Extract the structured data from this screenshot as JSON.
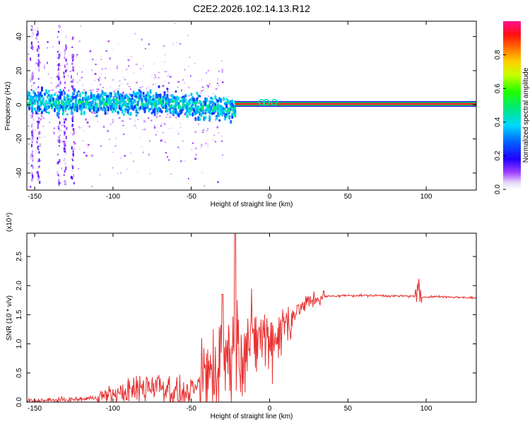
{
  "title": "C2E2.2026.102.14.13.R12",
  "chart_data": [
    {
      "type": "heatmap",
      "panel": "top",
      "xlabel": "Height of straight line (km)",
      "ylabel": "Frequency (Hz)",
      "xlim": [
        -155,
        132
      ],
      "ylim": [
        -50,
        49
      ],
      "xticks": [
        -150,
        -100,
        -50,
        0,
        50,
        100
      ],
      "yticks": [
        -40,
        -20,
        0,
        20,
        40
      ],
      "colorbar": {
        "label": "Normalized spectral amplitude",
        "range": [
          0,
          1
        ],
        "ticks": [
          "0.0",
          "0.2",
          "0.4",
          "0.6",
          "0.8"
        ],
        "tick_values": [
          0,
          0.2,
          0.4,
          0.6,
          0.8
        ]
      },
      "features": [
        {
          "name": "broad noisy band",
          "x_range": [
            -155,
            -22
          ],
          "center_freq": 0,
          "spread_hz": 10,
          "amplitude": "0.2-0.5"
        },
        {
          "name": "narrow stable tone",
          "x_range": [
            -22,
            132
          ],
          "center_freq": 0.5,
          "spread_hz": 1.5,
          "amplitude": "0.8-1.0"
        }
      ]
    },
    {
      "type": "line",
      "panel": "bottom",
      "xlabel": "Height of straight line (km)",
      "ylabel": "SNR (10 * v/v)",
      "multiplier": "(x10⁴)",
      "xlim": [
        -155,
        132
      ],
      "ylim": [
        0,
        2.9
      ],
      "xticks": [
        -150,
        -100,
        -50,
        0,
        50,
        100
      ],
      "yticks": [
        "0.0",
        "0.5",
        "1.0",
        "1.5",
        "2.0",
        "2.5"
      ],
      "ytick_values": [
        0,
        0.5,
        1.0,
        1.5,
        2.0,
        2.5
      ],
      "series": [
        {
          "name": "SNR",
          "color": "#e83030",
          "x": [
            -155,
            -140,
            -130,
            -120,
            -110,
            -100,
            -90,
            -80,
            -75,
            -70,
            -65,
            -60,
            -55,
            -50,
            -45,
            -40,
            -35,
            -30,
            -25,
            -20,
            -15,
            -10,
            -5,
            0,
            5,
            10,
            15,
            20,
            25,
            30,
            35,
            40,
            50,
            60,
            70,
            80,
            90,
            92,
            95,
            97,
            100,
            110,
            120,
            132
          ],
          "y": [
            0.02,
            0.03,
            0.04,
            0.05,
            0.08,
            0.13,
            0.18,
            0.25,
            0.32,
            0.3,
            0.24,
            0.15,
            0.12,
            0.18,
            0.28,
            0.45,
            0.62,
            0.78,
            0.85,
            0.92,
            0.98,
            1.05,
            1.15,
            1.05,
            1.15,
            1.35,
            1.5,
            1.62,
            1.72,
            1.78,
            1.81,
            1.82,
            1.83,
            1.83,
            1.83,
            1.82,
            1.82,
            1.82,
            1.84,
            1.8,
            1.81,
            1.81,
            1.8,
            1.79
          ],
          "spikes": [
            {
              "x": -22,
              "y": 2.95
            },
            {
              "x": -30,
              "y": 1.85
            },
            {
              "x": 95,
              "y": 2.02
            }
          ]
        }
      ]
    }
  ]
}
